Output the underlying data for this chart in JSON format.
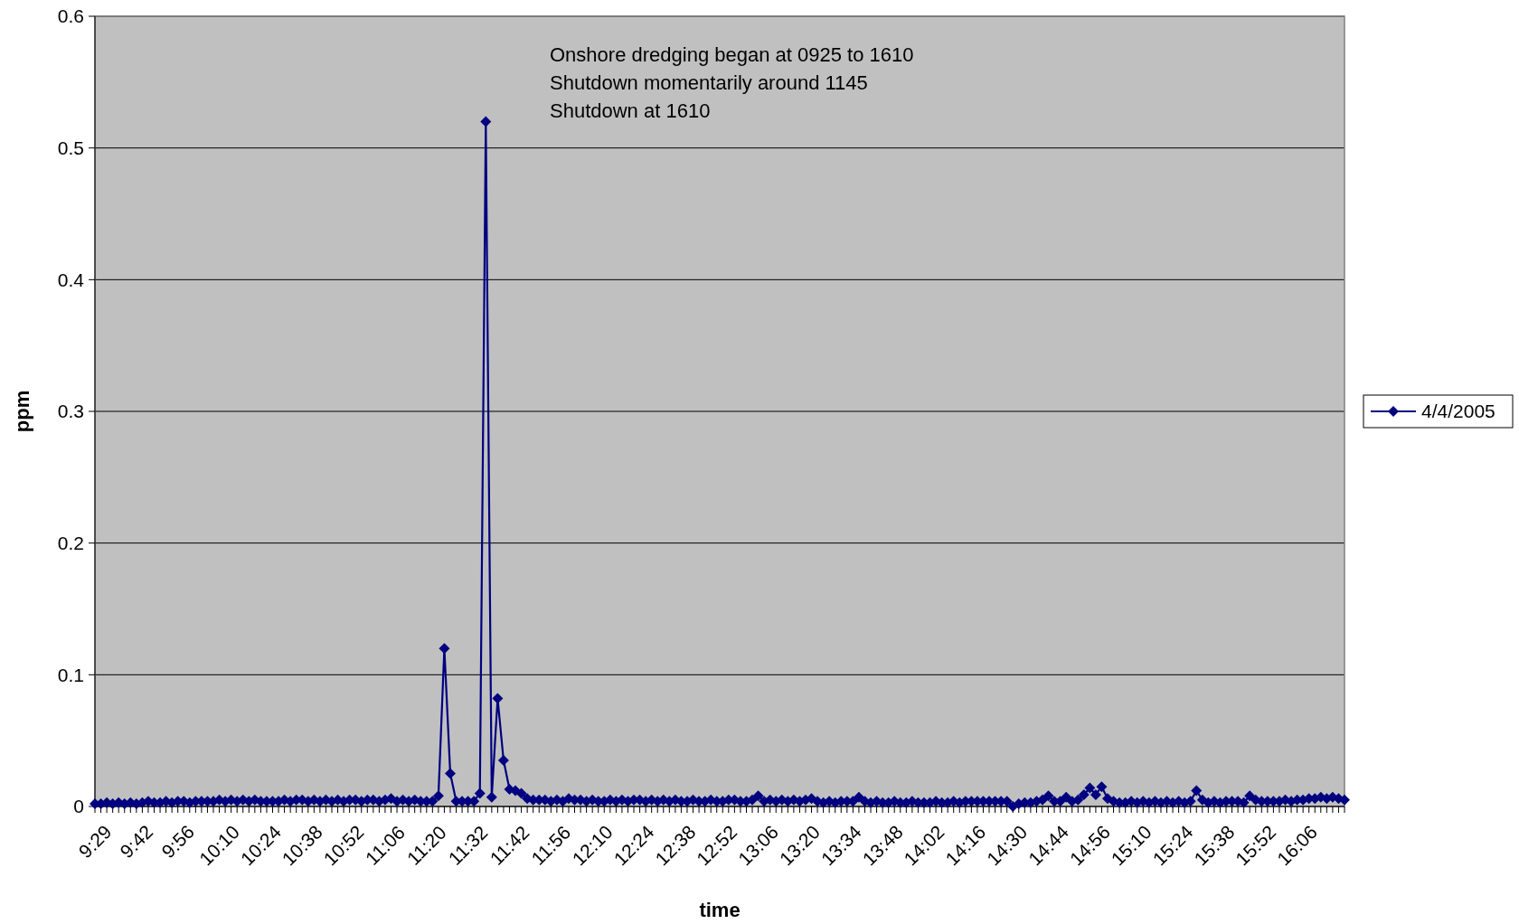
{
  "chart_data": {
    "type": "line",
    "xlabel": "time",
    "ylabel": "ppm",
    "annotations": [
      "Onshore dredging began at 0925 to 1610",
      "Shutdown momentarily around 1145",
      "Shutdown at 1610"
    ],
    "categories": [
      "9:29",
      null,
      null,
      null,
      null,
      null,
      null,
      "9:42",
      null,
      null,
      null,
      null,
      null,
      null,
      "9:56",
      null,
      null,
      null,
      null,
      null,
      null,
      "10:10",
      null,
      null,
      null,
      null,
      null,
      null,
      "10:24",
      null,
      null,
      null,
      null,
      null,
      null,
      "10:38",
      null,
      null,
      null,
      null,
      null,
      null,
      "10:52",
      null,
      null,
      null,
      null,
      null,
      null,
      "11:06",
      null,
      null,
      null,
      null,
      null,
      null,
      "11:20",
      null,
      null,
      null,
      null,
      null,
      null,
      "11:32",
      null,
      null,
      null,
      null,
      null,
      null,
      "11:42",
      null,
      null,
      null,
      null,
      null,
      null,
      "11:56",
      null,
      null,
      null,
      null,
      null,
      null,
      "12:10",
      null,
      null,
      null,
      null,
      null,
      null,
      "12:24",
      null,
      null,
      null,
      null,
      null,
      null,
      "12:38",
      null,
      null,
      null,
      null,
      null,
      null,
      "12:52",
      null,
      null,
      null,
      null,
      null,
      null,
      "13:06",
      null,
      null,
      null,
      null,
      null,
      null,
      "13:20",
      null,
      null,
      null,
      null,
      null,
      null,
      "13:34",
      null,
      null,
      null,
      null,
      null,
      null,
      "13:48",
      null,
      null,
      null,
      null,
      null,
      null,
      "14:02",
      null,
      null,
      null,
      null,
      null,
      null,
      "14:16",
      null,
      null,
      null,
      null,
      null,
      null,
      "14:30",
      null,
      null,
      null,
      null,
      null,
      null,
      "14:44",
      null,
      null,
      null,
      null,
      null,
      null,
      "14:56",
      null,
      null,
      null,
      null,
      null,
      null,
      "15:10",
      null,
      null,
      null,
      null,
      null,
      null,
      "15:24",
      null,
      null,
      null,
      null,
      null,
      null,
      "15:38",
      null,
      null,
      null,
      null,
      null,
      null,
      "15:52",
      null,
      null,
      null,
      null,
      null,
      null,
      "16:06",
      null,
      null,
      null,
      null,
      null,
      null,
      null,
      null
    ],
    "series": [
      {
        "name": "4/4/2005",
        "color": "#000080",
        "values": [
          0.002,
          0.002,
          0.003,
          0.002,
          0.003,
          0.002,
          0.003,
          0.002,
          0.003,
          0.004,
          0.003,
          0.003,
          0.004,
          0.003,
          0.004,
          0.004,
          0.003,
          0.004,
          0.004,
          0.004,
          0.004,
          0.005,
          0.004,
          0.005,
          0.004,
          0.005,
          0.004,
          0.005,
          0.004,
          0.004,
          0.004,
          0.004,
          0.005,
          0.004,
          0.005,
          0.005,
          0.004,
          0.005,
          0.004,
          0.005,
          0.004,
          0.005,
          0.004,
          0.005,
          0.005,
          0.004,
          0.005,
          0.005,
          0.004,
          0.005,
          0.006,
          0.004,
          0.005,
          0.004,
          0.005,
          0.004,
          0.004,
          0.004,
          0.008,
          0.12,
          0.025,
          0.004,
          0.004,
          0.004,
          0.004,
          0.01,
          0.52,
          0.007,
          0.082,
          0.035,
          0.013,
          0.012,
          0.01,
          0.006,
          0.005,
          0.005,
          0.005,
          0.004,
          0.005,
          0.004,
          0.006,
          0.005,
          0.005,
          0.004,
          0.005,
          0.004,
          0.004,
          0.005,
          0.004,
          0.005,
          0.004,
          0.005,
          0.005,
          0.004,
          0.005,
          0.004,
          0.005,
          0.004,
          0.005,
          0.004,
          0.004,
          0.005,
          0.004,
          0.004,
          0.005,
          0.004,
          0.004,
          0.005,
          0.005,
          0.004,
          0.004,
          0.005,
          0.008,
          0.004,
          0.005,
          0.004,
          0.005,
          0.004,
          0.005,
          0.004,
          0.005,
          0.006,
          0.004,
          0.003,
          0.004,
          0.003,
          0.004,
          0.004,
          0.004,
          0.007,
          0.004,
          0.003,
          0.004,
          0.003,
          0.003,
          0.004,
          0.003,
          0.003,
          0.004,
          0.003,
          0.003,
          0.003,
          0.004,
          0.003,
          0.003,
          0.004,
          0.003,
          0.004,
          0.004,
          0.004,
          0.004,
          0.004,
          0.004,
          0.004,
          0.004,
          0,
          0.002,
          0.003,
          0.003,
          0.004,
          0.005,
          0.008,
          0.004,
          0.004,
          0.007,
          0.004,
          0.005,
          0.009,
          0.014,
          0.009,
          0.015,
          0.006,
          0.004,
          0.003,
          0.003,
          0.004,
          0.003,
          0.004,
          0.003,
          0.004,
          0.003,
          0.004,
          0.003,
          0.004,
          0.003,
          0.004,
          0.012,
          0.005,
          0.003,
          0.004,
          0.003,
          0.004,
          0.004,
          0.004,
          0.003,
          0.008,
          0.005,
          0.004,
          0.004,
          0.004,
          0.004,
          0.005,
          0.004,
          0.005,
          0.005,
          0.006,
          0.006,
          0.007,
          0.006,
          0.007,
          0.006,
          0.005
        ]
      }
    ],
    "ylim": [
      0,
      0.6
    ],
    "yticks": [
      0,
      0.1,
      0.2,
      0.3,
      0.4,
      0.5,
      0.6
    ],
    "grid": "y",
    "legend": "right",
    "marker": "diamond",
    "line_style": "solid"
  }
}
